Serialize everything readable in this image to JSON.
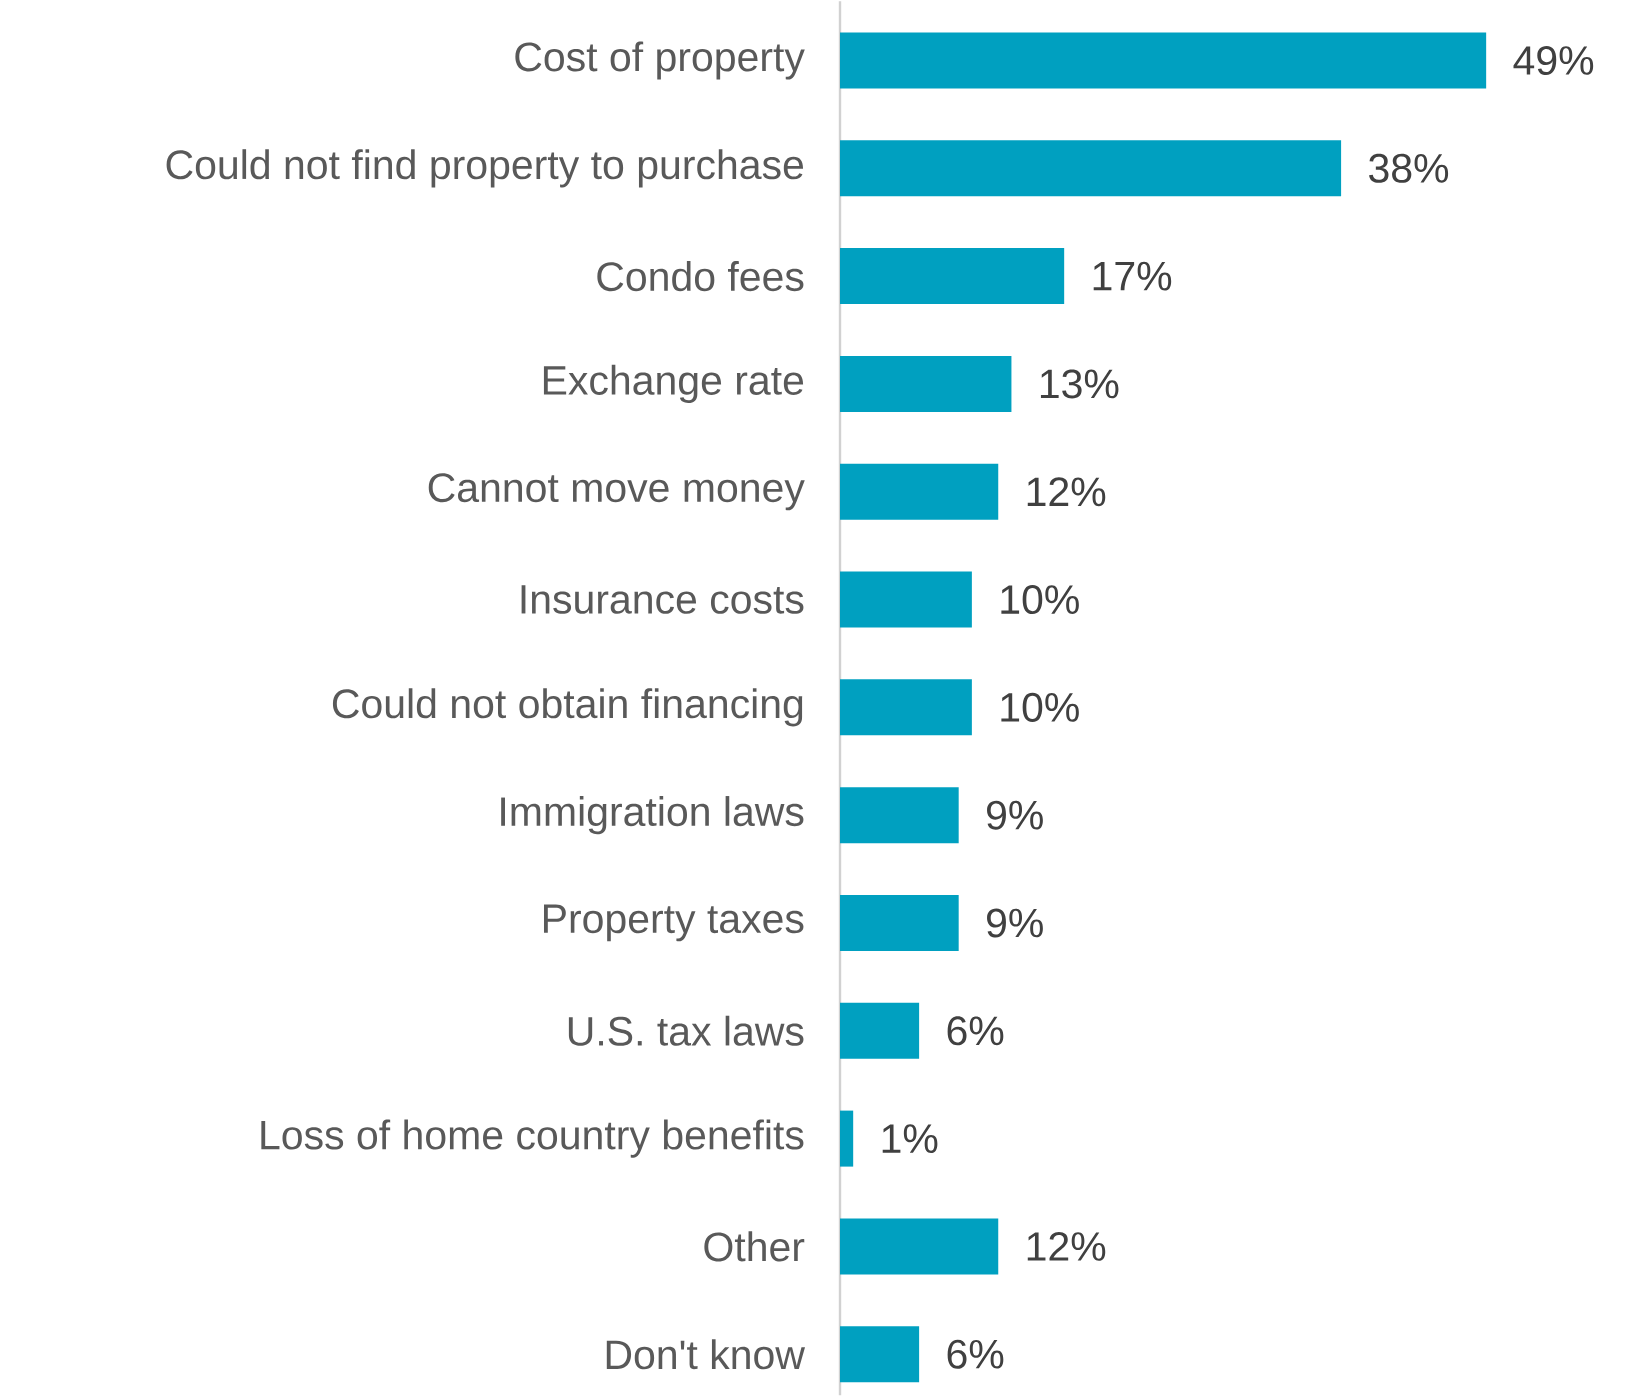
{
  "chart_data": {
    "type": "bar",
    "orientation": "horizontal",
    "categories": [
      "Cost of property",
      "Could not find property to purchase",
      "Condo fees",
      "Exchange rate",
      "Cannot move money",
      "Insurance costs",
      "Could not obtain financing",
      "Immigration laws",
      "Property taxes",
      "U.S. tax laws",
      "Loss of home country benefits",
      "Other",
      "Don't know"
    ],
    "values": [
      49,
      38,
      17,
      13,
      12,
      10,
      10,
      9,
      9,
      6,
      1,
      12,
      6
    ],
    "value_labels": [
      "49%",
      "38%",
      "17%",
      "13%",
      "12%",
      "10%",
      "10%",
      "9%",
      "9%",
      "6%",
      "1%",
      "12%",
      "6%"
    ],
    "color": "#00a0c0"
  }
}
